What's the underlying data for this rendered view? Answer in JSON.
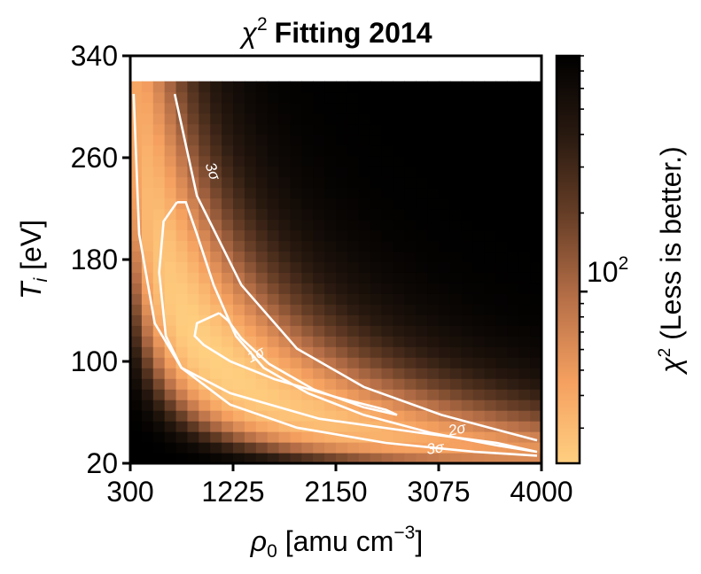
{
  "chart_data": {
    "type": "heatmap",
    "title_symbol": "χ",
    "title_sup": "2",
    "title_text": "Fitting 2014",
    "xlabel_main": "ρ",
    "xlabel_sub": "0",
    "xlabel_rest": " [amu cm",
    "xlabel_sup": "−3",
    "xlabel_end": "]",
    "ylabel_main": "T",
    "ylabel_sub": "i",
    "ylabel_rest": " [eV]",
    "xlim": [
      300,
      4000
    ],
    "ylim": [
      20,
      340
    ],
    "x_ticks": [
      "300",
      "1225",
      "2150",
      "3075",
      "4000"
    ],
    "y_ticks": [
      "20",
      "100",
      "180",
      "260",
      "340"
    ],
    "data_y_max": 320,
    "colorbar": {
      "label_symbol": "χ",
      "label_sup": "2",
      "label_text": " (Less is better.)",
      "scale": "log",
      "range": [
        22,
        800
      ],
      "tick_base": "10",
      "tick_exp": "2",
      "colormap": [
        "#ffcf80",
        "#f5a060",
        "#b87048",
        "#6a4028",
        "#2a1a10",
        "#000000"
      ]
    },
    "contours": [
      {
        "label": "1σ",
        "level": 1
      },
      {
        "label": "2σ",
        "level": 2
      },
      {
        "label": "3σ",
        "level": 3
      }
    ]
  }
}
